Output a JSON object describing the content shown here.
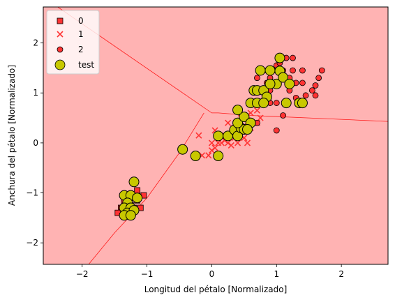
{
  "chart_data": {
    "type": "scatter",
    "xlabel": "Longitud del pétalo [Normalizado]",
    "ylabel": "Anchura del pétalo [Normalizado]",
    "xlim": [
      -2.6,
      2.72
    ],
    "ylim": [
      -2.43,
      2.72
    ],
    "xticks": [
      -2,
      -1,
      0,
      1,
      2
    ],
    "yticks": [
      -2,
      -1,
      0,
      1,
      2
    ],
    "grid": false,
    "legend_position": "top-left",
    "decision_regions": {
      "fill_color": "#ffb3b3",
      "boundary_color": "#ff1a1a",
      "boundaries": [
        [
          [
            -2.58,
            2.9
          ],
          [
            0.0,
            0.6
          ],
          [
            0.1,
            0.6
          ],
          [
            0.6,
            0.55
          ],
          [
            1.5,
            0.5
          ],
          [
            2.72,
            0.43
          ]
        ],
        [
          [
            -0.12,
            0.6
          ],
          [
            -0.5,
            -0.2
          ],
          [
            -1.0,
            -1.1
          ],
          [
            -1.5,
            -1.8
          ],
          [
            -1.9,
            -2.43
          ]
        ]
      ]
    },
    "series": [
      {
        "name": "0",
        "marker": "square",
        "color": "#ff3333",
        "points": [
          [
            -1.4,
            -1.3
          ],
          [
            -1.3,
            -1.3
          ],
          [
            -1.35,
            -1.4
          ],
          [
            -1.25,
            -1.25
          ],
          [
            -1.2,
            -1.3
          ],
          [
            -1.1,
            -1.3
          ],
          [
            -1.15,
            -1.15
          ],
          [
            -1.3,
            -1.15
          ],
          [
            -1.45,
            -1.4
          ],
          [
            -1.2,
            -1.1
          ],
          [
            -1.15,
            -1.05
          ],
          [
            -1.05,
            -1.05
          ],
          [
            -1.25,
            -1.05
          ],
          [
            -1.15,
            -0.95
          ],
          [
            -1.35,
            -1.2
          ]
        ]
      },
      {
        "name": "1",
        "marker": "x",
        "color": "#ff3333",
        "points": [
          [
            -0.15,
            -0.25
          ],
          [
            -0.05,
            -0.25
          ],
          [
            0.0,
            -0.15
          ],
          [
            0.05,
            -0.1
          ],
          [
            0.1,
            0.0
          ],
          [
            0.15,
            0.0
          ],
          [
            0.2,
            0.05
          ],
          [
            0.25,
            0.0
          ],
          [
            0.3,
            -0.05
          ],
          [
            0.2,
            0.15
          ],
          [
            0.3,
            0.15
          ],
          [
            0.35,
            0.1
          ],
          [
            0.4,
            0.0
          ],
          [
            0.45,
            0.15
          ],
          [
            0.5,
            0.1
          ],
          [
            0.55,
            0.0
          ],
          [
            0.5,
            0.35
          ],
          [
            0.6,
            0.3
          ],
          [
            0.65,
            0.4
          ],
          [
            0.7,
            0.65
          ],
          [
            0.75,
            0.5
          ],
          [
            0.55,
            0.55
          ],
          [
            0.6,
            0.6
          ],
          [
            0.7,
            0.4
          ],
          [
            -0.2,
            0.15
          ],
          [
            0.05,
            0.25
          ],
          [
            0.25,
            0.4
          ],
          [
            0.0,
            0.0
          ],
          [
            0.35,
            0.3
          ],
          [
            0.45,
            0.5
          ]
        ]
      },
      {
        "name": "2",
        "marker": "circle",
        "color": "#ff3333",
        "points": [
          [
            0.65,
            1.05
          ],
          [
            0.7,
            1.3
          ],
          [
            0.75,
            1.45
          ],
          [
            0.75,
            0.8
          ],
          [
            0.85,
            1.2
          ],
          [
            0.9,
            1.3
          ],
          [
            0.95,
            1.45
          ],
          [
            1.0,
            1.55
          ],
          [
            1.0,
            1.2
          ],
          [
            1.05,
            1.6
          ],
          [
            1.1,
            1.45
          ],
          [
            1.15,
            1.7
          ],
          [
            1.2,
            1.3
          ],
          [
            1.25,
            1.7
          ],
          [
            1.25,
            1.45
          ],
          [
            1.3,
            1.2
          ],
          [
            1.3,
            0.9
          ],
          [
            1.2,
            1.05
          ],
          [
            1.4,
            1.2
          ],
          [
            1.45,
            0.95
          ],
          [
            1.55,
            1.05
          ],
          [
            1.6,
            0.95
          ],
          [
            1.65,
            1.3
          ],
          [
            1.7,
            1.45
          ],
          [
            0.8,
            1.0
          ],
          [
            0.9,
            0.8
          ],
          [
            1.0,
            0.8
          ],
          [
            1.1,
            0.55
          ],
          [
            1.0,
            0.25
          ],
          [
            0.6,
            0.8
          ],
          [
            0.65,
            0.4
          ],
          [
            0.7,
            0.4
          ],
          [
            0.8,
            1.45
          ],
          [
            1.6,
            1.15
          ],
          [
            0.9,
            1.05
          ],
          [
            1.4,
            1.45
          ]
        ]
      },
      {
        "name": "test",
        "marker": "circle",
        "color": "#c8c800",
        "points": [
          [
            -1.35,
            -1.05
          ],
          [
            -1.25,
            -1.05
          ],
          [
            -1.15,
            -1.1
          ],
          [
            -1.3,
            -1.2
          ],
          [
            -1.35,
            -1.3
          ],
          [
            -1.25,
            -1.3
          ],
          [
            -1.3,
            -1.4
          ],
          [
            -1.2,
            -1.35
          ],
          [
            -1.35,
            -1.45
          ],
          [
            -1.25,
            -1.45
          ],
          [
            -1.2,
            -0.78
          ],
          [
            -0.45,
            -0.13
          ],
          [
            -0.25,
            -0.26
          ],
          [
            0.1,
            -0.26
          ],
          [
            0.1,
            0.14
          ],
          [
            0.25,
            0.14
          ],
          [
            0.35,
            0.26
          ],
          [
            0.4,
            0.14
          ],
          [
            0.45,
            0.3
          ],
          [
            0.5,
            0.27
          ],
          [
            0.4,
            0.4
          ],
          [
            0.5,
            0.52
          ],
          [
            0.6,
            0.4
          ],
          [
            0.55,
            0.27
          ],
          [
            0.4,
            0.66
          ],
          [
            0.6,
            0.8
          ],
          [
            0.65,
            1.05
          ],
          [
            0.7,
            0.8
          ],
          [
            0.7,
            1.05
          ],
          [
            0.8,
            1.05
          ],
          [
            0.85,
            0.92
          ],
          [
            0.75,
            1.45
          ],
          [
            0.9,
            1.45
          ],
          [
            1.0,
            1.18
          ],
          [
            1.05,
            1.44
          ],
          [
            1.1,
            1.31
          ],
          [
            1.05,
            1.7
          ],
          [
            1.2,
            1.18
          ],
          [
            1.15,
            0.8
          ],
          [
            1.35,
            0.8
          ],
          [
            1.4,
            0.8
          ],
          [
            0.8,
            0.8
          ],
          [
            0.9,
            1.18
          ]
        ]
      }
    ]
  }
}
